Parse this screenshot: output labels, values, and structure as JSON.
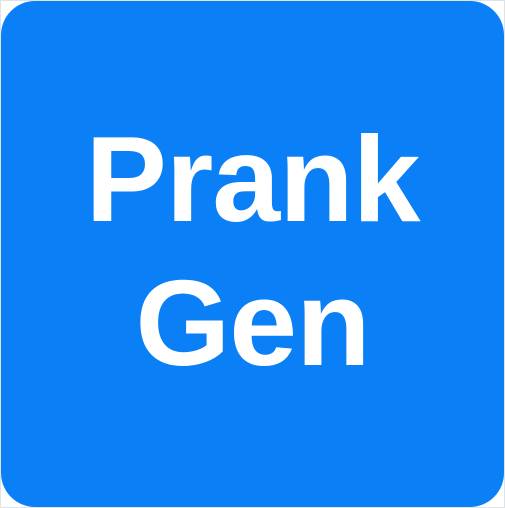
{
  "app_icon": {
    "line1": "Prank",
    "line2": "Gen",
    "background_color": "#0b80f6",
    "text_color": "#ffffff"
  }
}
